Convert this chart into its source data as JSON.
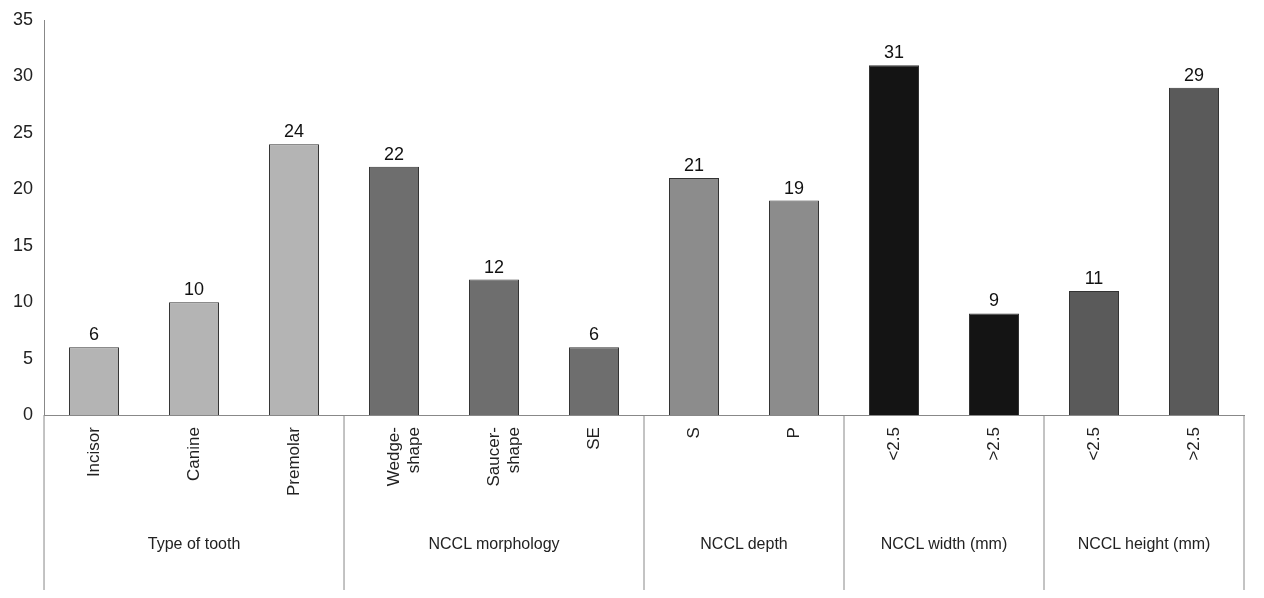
{
  "chart_data": {
    "type": "bar",
    "categories": [
      "Incisor",
      "Canine",
      "Premolar",
      "Wedge-shape",
      "Saucer-shape",
      "SE",
      "S",
      "P",
      "<2.5",
      ">2.5",
      "<2.5",
      ">2.5"
    ],
    "values": [
      6,
      10,
      24,
      22,
      12,
      6,
      21,
      19,
      31,
      9,
      11,
      29
    ],
    "colors": [
      "#b4b4b4",
      "#b4b4b4",
      "#b4b4b4",
      "#6e6e6e",
      "#6e6e6e",
      "#6e6e6e",
      "#8c8c8c",
      "#8c8c8c",
      "#141414",
      "#141414",
      "#5a5a5a",
      "#5a5a5a"
    ],
    "ylim": [
      0,
      35
    ],
    "yticks": [
      0,
      5,
      10,
      15,
      20,
      25,
      30,
      35
    ],
    "grid": false,
    "legend": false,
    "data_labels": true,
    "annotations": [
      "Type of tooth",
      "NCCL morphology",
      "NCCL depth",
      "NCCL width (mm)",
      "NCCL height (mm)"
    ]
  }
}
